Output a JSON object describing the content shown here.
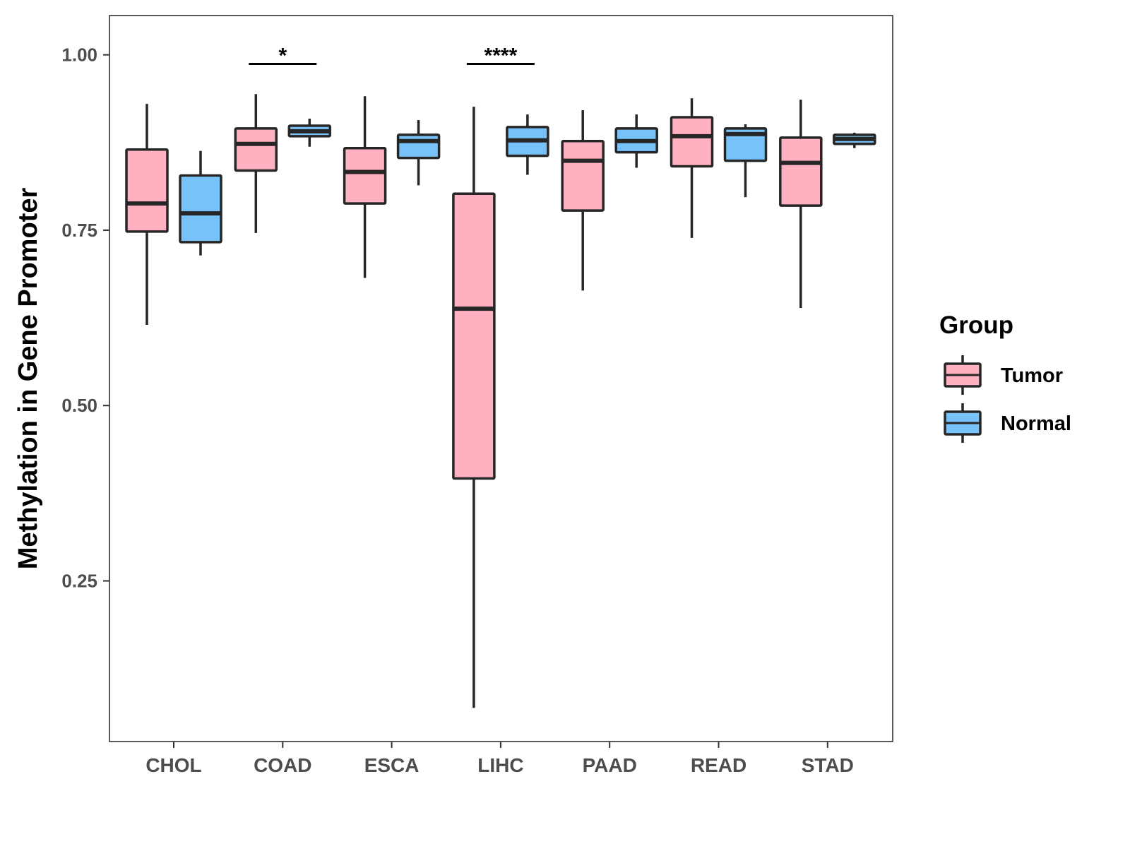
{
  "chart_data": {
    "type": "boxplot",
    "title": "",
    "xlabel": "",
    "ylabel": "Methylation in Gene Promoter",
    "ylim": [
      0.021,
      1.056
    ],
    "yticks": [
      0.25,
      0.5,
      0.75,
      1.0
    ],
    "ytick_labels": [
      "0.25",
      "0.50",
      "0.75",
      "1.00"
    ],
    "categories": [
      "CHOL",
      "COAD",
      "ESCA",
      "LIHC",
      "PAAD",
      "READ",
      "STAD"
    ],
    "grid": false,
    "legend": {
      "title": "Group",
      "position": "right",
      "entries": [
        "Tumor",
        "Normal"
      ]
    },
    "colors": {
      "Tumor": "#FFB0C1",
      "Normal": "#77C2F8",
      "outline": "#262626"
    },
    "series": [
      {
        "name": "Tumor",
        "boxes": [
          {
            "whislo": 0.615,
            "q1": 0.748,
            "med": 0.788,
            "q3": 0.865,
            "whishi": 0.93
          },
          {
            "whislo": 0.746,
            "q1": 0.835,
            "med": 0.873,
            "q3": 0.895,
            "whishi": 0.944
          },
          {
            "whislo": 0.682,
            "q1": 0.788,
            "med": 0.833,
            "q3": 0.867,
            "whishi": 0.941
          },
          {
            "whislo": 0.069,
            "q1": 0.396,
            "med": 0.638,
            "q3": 0.802,
            "whishi": 0.926
          },
          {
            "whislo": 0.664,
            "q1": 0.778,
            "med": 0.849,
            "q3": 0.877,
            "whishi": 0.921
          },
          {
            "whislo": 0.739,
            "q1": 0.841,
            "med": 0.884,
            "q3": 0.911,
            "whishi": 0.938
          },
          {
            "whislo": 0.639,
            "q1": 0.785,
            "med": 0.846,
            "q3": 0.882,
            "whishi": 0.936
          }
        ]
      },
      {
        "name": "Normal",
        "boxes": [
          {
            "whislo": 0.714,
            "q1": 0.733,
            "med": 0.774,
            "q3": 0.828,
            "whishi": 0.863
          },
          {
            "whislo": 0.869,
            "q1": 0.884,
            "med": 0.891,
            "q3": 0.899,
            "whishi": 0.909
          },
          {
            "whislo": 0.814,
            "q1": 0.853,
            "med": 0.877,
            "q3": 0.886,
            "whishi": 0.907
          },
          {
            "whislo": 0.829,
            "q1": 0.856,
            "med": 0.878,
            "q3": 0.897,
            "whishi": 0.915
          },
          {
            "whislo": 0.839,
            "q1": 0.861,
            "med": 0.877,
            "q3": 0.895,
            "whishi": 0.915
          },
          {
            "whislo": 0.797,
            "q1": 0.849,
            "med": 0.887,
            "q3": 0.895,
            "whishi": 0.901
          },
          {
            "whislo": 0.867,
            "q1": 0.873,
            "med": 0.88,
            "q3": 0.886,
            "whishi": 0.889
          }
        ]
      }
    ],
    "annotations": [
      {
        "category": "COAD",
        "label": "*",
        "y": 0.987
      },
      {
        "category": "LIHC",
        "label": "****",
        "y": 0.987
      }
    ]
  }
}
